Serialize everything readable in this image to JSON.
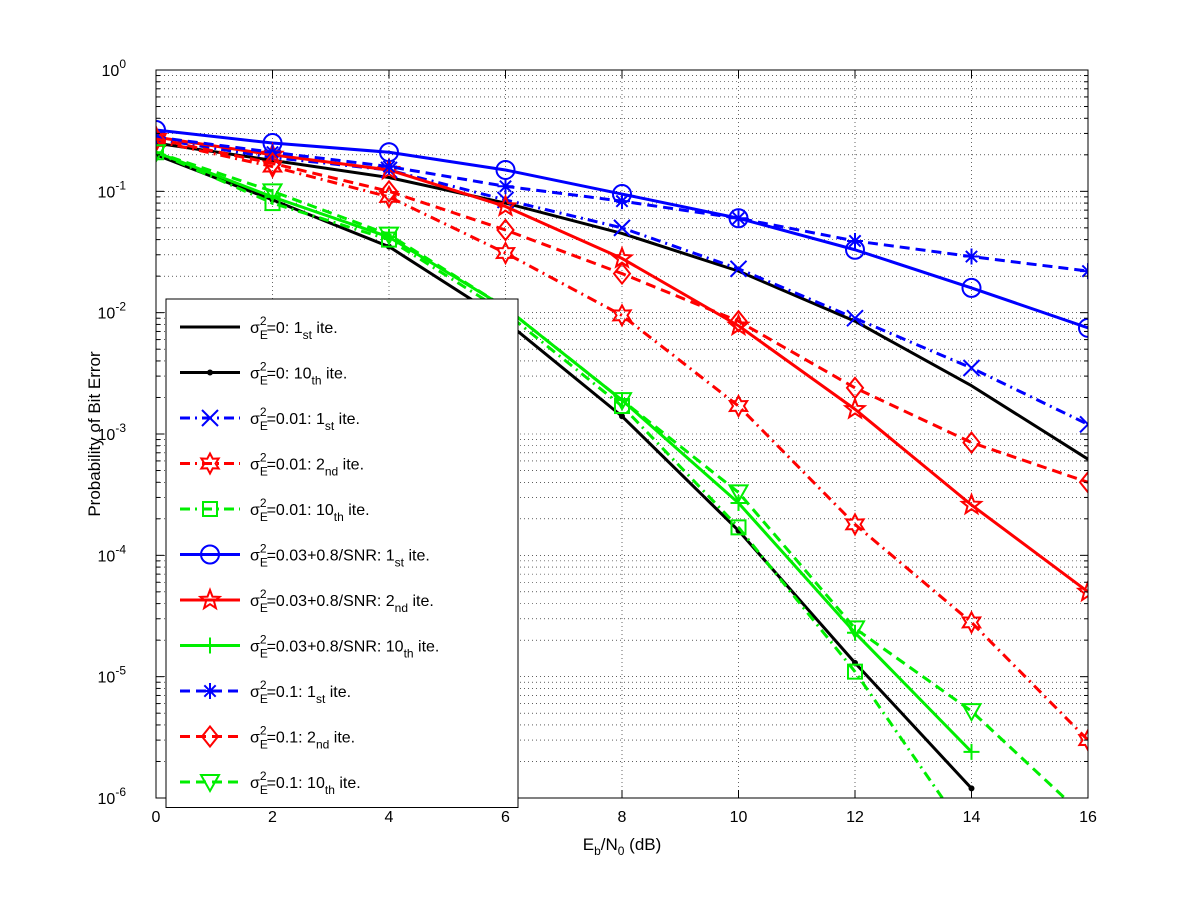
{
  "chart_data": {
    "type": "line",
    "xscale": "linear",
    "yscale": "log",
    "xlim": [
      0,
      16
    ],
    "ylim": [
      1e-06,
      1
    ],
    "grid": true,
    "xlabel": {
      "main": "E",
      "sub1": "b",
      "mid": "/N",
      "sub2": "0",
      "tail": " (dB)"
    },
    "ylabel": "Probability of Bit Error",
    "xticks": [
      {
        "v": 0,
        "label": "0"
      },
      {
        "v": 2,
        "label": "2"
      },
      {
        "v": 4,
        "label": "4"
      },
      {
        "v": 6,
        "label": "6"
      },
      {
        "v": 8,
        "label": "8"
      },
      {
        "v": 10,
        "label": "10"
      },
      {
        "v": 12,
        "label": "12"
      },
      {
        "v": 14,
        "label": "14"
      },
      {
        "v": 16,
        "label": "16"
      }
    ],
    "yticks": [
      {
        "v": 1,
        "base": "10",
        "exp": "0"
      },
      {
        "v": 0.1,
        "base": "10",
        "exp": "-1"
      },
      {
        "v": 0.01,
        "base": "10",
        "exp": "-2"
      },
      {
        "v": 0.001,
        "base": "10",
        "exp": "-3"
      },
      {
        "v": 0.0001,
        "base": "10",
        "exp": "-4"
      },
      {
        "v": 1e-05,
        "base": "10",
        "exp": "-5"
      },
      {
        "v": 1e-06,
        "base": "10",
        "exp": "-6"
      }
    ],
    "legend_position": "bottom-left",
    "series": [
      {
        "name": "σE²=0: 1st ite.",
        "color": "#000000",
        "dash": "solid",
        "marker": "none",
        "label": {
          "pre": "=0: ",
          "ord": "1",
          "sub": "st",
          "post": " ite."
        },
        "x": [
          0,
          2,
          4,
          6,
          8,
          10,
          12,
          14,
          16
        ],
        "y": [
          0.25,
          0.18,
          0.13,
          0.08,
          0.045,
          0.022,
          0.0085,
          0.0025,
          0.00062
        ]
      },
      {
        "name": "σE²=0: 10th ite.",
        "color": "#000000",
        "dash": "solid",
        "marker": "dot",
        "label": {
          "pre": "=0: ",
          "ord": "10",
          "sub": "th",
          "post": " ite."
        },
        "x": [
          0,
          2,
          4,
          6,
          8,
          10,
          12,
          14
        ],
        "y": [
          0.2,
          0.085,
          0.035,
          0.0085,
          0.0014,
          0.00016,
          1.3e-05,
          1.2e-06
        ]
      },
      {
        "name": "σE²=0.01: 1st ite.",
        "color": "#0000ff",
        "dash": "dashdot",
        "marker": "x",
        "label": {
          "pre": "=0.01: ",
          "ord": "1",
          "sub": "st",
          "post": " ite."
        },
        "x": [
          0,
          2,
          4,
          6,
          8,
          10,
          12,
          14,
          16
        ],
        "y": [
          0.27,
          0.19,
          0.15,
          0.085,
          0.05,
          0.023,
          0.009,
          0.0035,
          0.0012
        ]
      },
      {
        "name": "σE²=0.01: 2nd ite.",
        "color": "#ff0000",
        "dash": "dashdot",
        "marker": "hexagram",
        "label": {
          "pre": "=0.01: ",
          "ord": "2",
          "sub": "nd",
          "post": " ite."
        },
        "x": [
          0,
          2,
          4,
          6,
          8,
          10,
          12,
          14,
          16
        ],
        "y": [
          0.26,
          0.16,
          0.09,
          0.031,
          0.0095,
          0.0017,
          0.00018,
          2.8e-05,
          3e-06
        ]
      },
      {
        "name": "σE²=0.01: 10th ite.",
        "color": "#00ee00",
        "dash": "dashdot",
        "marker": "square",
        "label": {
          "pre": "=0.01: ",
          "ord": "10",
          "sub": "th",
          "post": " ite."
        },
        "x": [
          0,
          2,
          4,
          6,
          8,
          10,
          12,
          13.5
        ],
        "y": [
          0.21,
          0.08,
          0.04,
          0.01,
          0.0017,
          0.00017,
          1.1e-05,
          1e-06
        ]
      },
      {
        "name": "σE²=0.03+0.8/SNR: 1st ite.",
        "color": "#0000ff",
        "dash": "solid",
        "marker": "circle",
        "label": {
          "pre": "=0.03+0.8/SNR: ",
          "ord": "1",
          "sub": "st",
          "post": " ite."
        },
        "x": [
          0,
          2,
          4,
          6,
          8,
          10,
          12,
          14,
          16
        ],
        "y": [
          0.32,
          0.25,
          0.21,
          0.15,
          0.095,
          0.06,
          0.033,
          0.016,
          0.0075
        ]
      },
      {
        "name": "σE²=0.03+0.8/SNR: 2nd ite.",
        "color": "#ff0000",
        "dash": "solid",
        "marker": "pentagram",
        "label": {
          "pre": "=0.03+0.8/SNR: ",
          "ord": "2",
          "sub": "nd",
          "post": " ite."
        },
        "x": [
          0,
          2,
          4,
          6,
          8,
          10,
          12,
          14,
          16
        ],
        "y": [
          0.28,
          0.2,
          0.15,
          0.075,
          0.028,
          0.0078,
          0.0016,
          0.00026,
          5e-05
        ]
      },
      {
        "name": "σE²=0.03+0.8/SNR: 10th ite.",
        "color": "#00ee00",
        "dash": "solid",
        "marker": "plus",
        "label": {
          "pre": "=0.03+0.8/SNR: ",
          "ord": "10",
          "sub": "th",
          "post": " ite."
        },
        "x": [
          0,
          2,
          4,
          6,
          8,
          10,
          12,
          14
        ],
        "y": [
          0.21,
          0.09,
          0.042,
          0.011,
          0.0019,
          0.00027,
          2.3e-05,
          2.4e-06
        ]
      },
      {
        "name": "σE²=0.1: 1st ite.",
        "color": "#0000ff",
        "dash": "dashed",
        "marker": "asterisk",
        "label": {
          "pre": "=0.1: ",
          "ord": "1",
          "sub": "st",
          "post": " ite."
        },
        "x": [
          0,
          2,
          4,
          6,
          8,
          10,
          12,
          14,
          16
        ],
        "y": [
          0.28,
          0.21,
          0.16,
          0.11,
          0.083,
          0.06,
          0.039,
          0.029,
          0.022
        ]
      },
      {
        "name": "σE²=0.1: 2nd ite.",
        "color": "#ff0000",
        "dash": "dashed",
        "marker": "diamond",
        "label": {
          "pre": "=0.1: ",
          "ord": "2",
          "sub": "nd",
          "post": " ite."
        },
        "x": [
          0,
          2,
          4,
          6,
          8,
          10,
          12,
          14,
          16
        ],
        "y": [
          0.27,
          0.17,
          0.1,
          0.048,
          0.021,
          0.0085,
          0.0024,
          0.00085,
          0.0004
        ]
      },
      {
        "name": "σE²=0.1: 10th ite.",
        "color": "#00ee00",
        "dash": "dashed",
        "marker": "triangle-down",
        "label": {
          "pre": "=0.1: ",
          "ord": "10",
          "sub": "th",
          "post": " ite."
        },
        "x": [
          0,
          2,
          4,
          6,
          8,
          10,
          12,
          14,
          15.6
        ],
        "y": [
          0.21,
          0.1,
          0.044,
          0.011,
          0.0019,
          0.00033,
          2.5e-05,
          5.2e-06,
          1e-06
        ]
      }
    ]
  }
}
